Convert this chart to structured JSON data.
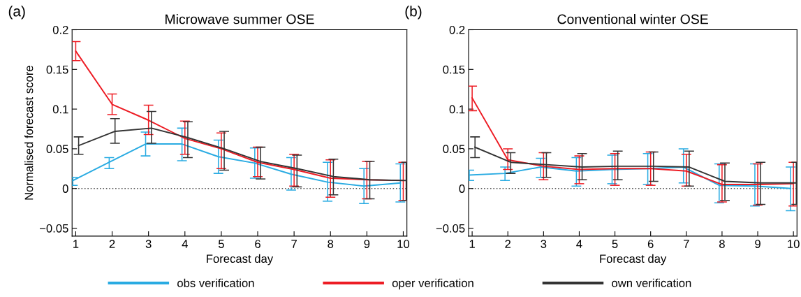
{
  "chart_data": [
    {
      "type": "line",
      "title": "Microwave summer OSE",
      "xlabel": "Forecast day",
      "ylabel": "Normalised forecast score",
      "annotations": [
        "(a)"
      ],
      "x": [
        1,
        2,
        3,
        4,
        5,
        6,
        7,
        8,
        9,
        10
      ],
      "xlim": [
        0.9,
        10.1
      ],
      "xticks": [
        1,
        2,
        3,
        4,
        5,
        6,
        7,
        8,
        9,
        10
      ],
      "ylim": [
        -0.06,
        0.2
      ],
      "yticks": [
        {
          "value": -0.05,
          "label": "−0.05"
        },
        0,
        0.05,
        0.1,
        0.15,
        0.2
      ],
      "grid": false,
      "legend": "bottom",
      "marker": "none",
      "line_style": "solid",
      "ref_lines": [
        {
          "axis": "y",
          "value": 0,
          "color": "#555555",
          "line_style": "dotted"
        }
      ],
      "series": [
        {
          "name": "obs verification",
          "color": "#29abe2",
          "x": [
            0.92,
            1.92,
            2.92,
            3.92,
            4.92,
            5.92,
            6.92,
            7.92,
            8.92,
            9.92
          ],
          "values": [
            0.01,
            0.033,
            0.056,
            0.056,
            0.04,
            0.032,
            0.018,
            0.008,
            0.003,
            0.007
          ],
          "errors": [
            [
              0.004,
              0.014
            ],
            [
              0.025,
              0.039
            ],
            [
              0.041,
              0.071
            ],
            [
              0.035,
              0.076
            ],
            [
              0.019,
              0.061
            ],
            [
              0.013,
              0.051
            ],
            [
              -0.002,
              0.039
            ],
            [
              -0.016,
              0.033
            ],
            [
              -0.019,
              0.025
            ],
            [
              -0.017,
              0.031
            ]
          ]
        },
        {
          "name": "oper verification",
          "color": "#ed1c24",
          "values": [
            0.173,
            0.106,
            0.086,
            0.063,
            0.05,
            0.033,
            0.024,
            0.013,
            0.011,
            0.01
          ],
          "errors": [
            [
              0.161,
              0.185
            ],
            [
              0.093,
              0.119
            ],
            [
              0.068,
              0.105
            ],
            [
              0.043,
              0.085
            ],
            [
              0.025,
              0.07
            ],
            [
              0.015,
              0.052
            ],
            [
              0.003,
              0.043
            ],
            [
              -0.011,
              0.036
            ],
            [
              -0.013,
              0.034
            ],
            [
              -0.015,
              0.033
            ]
          ]
        },
        {
          "name": "own verification",
          "color": "#333333",
          "x": [
            1.08,
            2.08,
            3.08,
            4.08,
            5.08,
            6.08,
            7.08,
            8.08,
            9.08,
            10.08
          ],
          "values": [
            0.054,
            0.072,
            0.076,
            0.064,
            0.05,
            0.034,
            0.025,
            0.015,
            0.011,
            0.01
          ],
          "errors": [
            [
              0.043,
              0.065
            ],
            [
              0.057,
              0.088
            ],
            [
              0.057,
              0.097
            ],
            [
              0.039,
              0.084
            ],
            [
              0.023,
              0.072
            ],
            [
              0.012,
              0.052
            ],
            [
              0.002,
              0.042
            ],
            [
              -0.008,
              0.037
            ],
            [
              -0.013,
              0.034
            ],
            [
              -0.015,
              0.033
            ]
          ]
        }
      ]
    },
    {
      "type": "line",
      "title": "Conventional winter OSE",
      "xlabel": "Forecast day",
      "annotations": [
        "(b)"
      ],
      "x": [
        1,
        2,
        3,
        4,
        5,
        6,
        7,
        8,
        9,
        10
      ],
      "xlim": [
        0.9,
        10.1
      ],
      "xticks": [
        1,
        2,
        3,
        4,
        5,
        6,
        7,
        8,
        9,
        10
      ],
      "ylim": [
        -0.06,
        0.2
      ],
      "yticks": [
        {
          "value": -0.05,
          "label": "−0.05"
        },
        0,
        0.05,
        0.1,
        0.15,
        0.2
      ],
      "grid": false,
      "marker": "none",
      "line_style": "solid",
      "ref_lines": [
        {
          "axis": "y",
          "value": 0,
          "color": "#555555",
          "line_style": "dotted"
        }
      ],
      "series": [
        {
          "color": "#29abe2",
          "x": [
            0.92,
            1.92,
            2.92,
            3.92,
            4.92,
            5.92,
            6.92,
            7.92,
            8.92,
            9.92
          ],
          "values": [
            0.017,
            0.019,
            0.027,
            0.022,
            0.024,
            0.025,
            0.027,
            0.004,
            0.003,
            0.0
          ],
          "errors": [
            [
              0.01,
              0.023
            ],
            [
              0.01,
              0.027
            ],
            [
              0.014,
              0.038
            ],
            [
              0.003,
              0.039
            ],
            [
              0.006,
              0.042
            ],
            [
              0.005,
              0.044
            ],
            [
              0.007,
              0.05
            ],
            [
              -0.018,
              0.031
            ],
            [
              -0.022,
              0.031
            ],
            [
              -0.028,
              0.027
            ]
          ]
        },
        {
          "color": "#ed1c24",
          "values": [
            0.114,
            0.036,
            0.028,
            0.024,
            0.025,
            0.025,
            0.022,
            0.005,
            0.005,
            0.006
          ],
          "errors": [
            [
              0.098,
              0.129
            ],
            [
              0.024,
              0.05
            ],
            [
              0.011,
              0.045
            ],
            [
              0.006,
              0.041
            ],
            [
              0.004,
              0.044
            ],
            [
              0.004,
              0.046
            ],
            [
              0.003,
              0.043
            ],
            [
              -0.017,
              0.03
            ],
            [
              -0.021,
              0.031
            ],
            [
              -0.022,
              0.033
            ]
          ]
        },
        {
          "color": "#333333",
          "x": [
            1.08,
            2.08,
            3.08,
            4.08,
            5.08,
            6.08,
            7.08,
            8.08,
            9.08,
            10.08
          ],
          "values": [
            0.052,
            0.033,
            0.03,
            0.027,
            0.028,
            0.028,
            0.027,
            0.009,
            0.007,
            0.007
          ],
          "errors": [
            [
              0.039,
              0.065
            ],
            [
              0.019,
              0.045
            ],
            [
              0.014,
              0.045
            ],
            [
              0.011,
              0.044
            ],
            [
              0.011,
              0.047
            ],
            [
              0.009,
              0.046
            ],
            [
              0.003,
              0.047
            ],
            [
              -0.015,
              0.032
            ],
            [
              -0.02,
              0.033
            ],
            [
              -0.02,
              0.033
            ]
          ]
        }
      ]
    }
  ]
}
